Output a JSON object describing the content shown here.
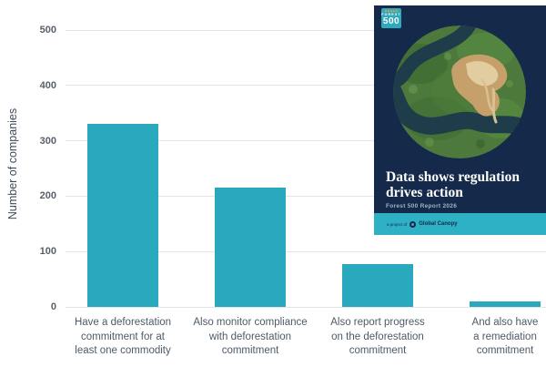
{
  "page": {
    "background": "#FFFFFF"
  },
  "chart_data": {
    "type": "bar",
    "title": "",
    "xlabel": "",
    "ylabel": "Number of companies",
    "ylim": [
      0,
      500
    ],
    "yticks": [
      0,
      100,
      200,
      300,
      400,
      500
    ],
    "grid": true,
    "legend": "none",
    "bar_color": "#2AA8BD",
    "categories": [
      "Have a deforestation commitment for at least one commodity",
      "Also monitor compliance with deforestation commitment",
      "Also report progress on the deforestation commitment",
      "And also have a remediation commitment"
    ],
    "category_lines": [
      [
        "Have a deforestation",
        "commitment for at",
        "least one commodity"
      ],
      [
        "Also monitor compliance",
        "with deforestation",
        "commitment"
      ],
      [
        "Also report progress",
        "on the deforestation",
        "commitment"
      ],
      [
        "And also have",
        "a remediation",
        "commitment"
      ]
    ],
    "values": [
      330,
      215,
      77,
      10
    ]
  },
  "cover": {
    "logo_word": "FOREST",
    "logo_number": "500",
    "title": "Data shows regulation drives action",
    "subtitle": "Forest 500 Report 2026",
    "footer_prefix": "a project of",
    "footer_org": "Global Canopy",
    "colors": {
      "background": "#15294A",
      "band": "#2EB0C5",
      "logo": "#2FA9BC"
    }
  },
  "colors": {
    "grid": "#E4E5E7",
    "tick_text": "#58606C",
    "label_text": "#4E5A68",
    "axis_title": "#3E4A5E"
  }
}
